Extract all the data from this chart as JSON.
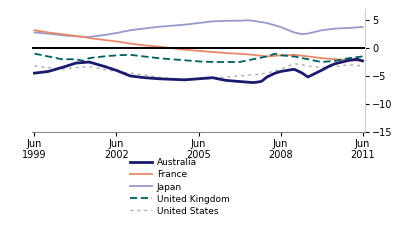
{
  "ylabel": "%",
  "ylim": [
    -15,
    7
  ],
  "yticks": [
    -15,
    -10,
    -5,
    0,
    5
  ],
  "x_start": 1999.4,
  "x_end": 2011.6,
  "xtick_labels": [
    "Jun\n1999",
    "Jun\n2002",
    "Jun\n2005",
    "Jun\n2008",
    "Jun\n2011"
  ],
  "xtick_positions": [
    1999.5,
    2002.5,
    2005.5,
    2008.5,
    2011.5
  ],
  "australia_color": "#1a1a6e",
  "france_color": "#e8896a",
  "japan_color": "#9999cc",
  "uk_color": "#006060",
  "us_color": "#aaaaaa",
  "background_color": "#ffffff",
  "australia_pts": [
    [
      1999.5,
      -4.5
    ],
    [
      2000.0,
      -4.2
    ],
    [
      2000.5,
      -3.5
    ],
    [
      2001.0,
      -2.7
    ],
    [
      2001.5,
      -2.5
    ],
    [
      2002.0,
      -3.2
    ],
    [
      2002.5,
      -4.0
    ],
    [
      2003.0,
      -5.0
    ],
    [
      2003.5,
      -5.3
    ],
    [
      2004.0,
      -5.5
    ],
    [
      2004.5,
      -5.6
    ],
    [
      2005.0,
      -5.7
    ],
    [
      2005.5,
      -5.5
    ],
    [
      2006.0,
      -5.3
    ],
    [
      2006.5,
      -5.8
    ],
    [
      2007.0,
      -6.0
    ],
    [
      2007.5,
      -6.2
    ],
    [
      2007.8,
      -6.0
    ],
    [
      2008.0,
      -5.2
    ],
    [
      2008.3,
      -4.5
    ],
    [
      2008.5,
      -4.2
    ],
    [
      2009.0,
      -3.8
    ],
    [
      2009.3,
      -4.5
    ],
    [
      2009.5,
      -5.2
    ],
    [
      2010.0,
      -4.0
    ],
    [
      2010.3,
      -3.2
    ],
    [
      2010.5,
      -2.8
    ],
    [
      2011.0,
      -2.2
    ],
    [
      2011.3,
      -2.0
    ],
    [
      2011.5,
      -2.3
    ]
  ],
  "france_pts": [
    [
      1999.5,
      3.2
    ],
    [
      2000.0,
      2.8
    ],
    [
      2000.5,
      2.5
    ],
    [
      2001.0,
      2.2
    ],
    [
      2001.5,
      1.8
    ],
    [
      2002.0,
      1.5
    ],
    [
      2002.5,
      1.2
    ],
    [
      2003.0,
      0.8
    ],
    [
      2003.5,
      0.5
    ],
    [
      2004.0,
      0.3
    ],
    [
      2004.5,
      0.0
    ],
    [
      2005.0,
      -0.3
    ],
    [
      2005.5,
      -0.5
    ],
    [
      2006.0,
      -0.7
    ],
    [
      2006.5,
      -0.9
    ],
    [
      2007.0,
      -1.0
    ],
    [
      2007.5,
      -1.2
    ],
    [
      2008.0,
      -1.5
    ],
    [
      2008.5,
      -1.3
    ],
    [
      2009.0,
      -1.2
    ],
    [
      2009.5,
      -1.5
    ],
    [
      2010.0,
      -1.8
    ],
    [
      2010.5,
      -2.0
    ],
    [
      2011.0,
      -2.2
    ],
    [
      2011.5,
      -2.3
    ]
  ],
  "japan_pts": [
    [
      1999.5,
      2.8
    ],
    [
      2000.0,
      2.6
    ],
    [
      2000.5,
      2.3
    ],
    [
      2001.0,
      2.1
    ],
    [
      2001.5,
      2.0
    ],
    [
      2002.0,
      2.3
    ],
    [
      2002.5,
      2.7
    ],
    [
      2003.0,
      3.2
    ],
    [
      2003.5,
      3.5
    ],
    [
      2004.0,
      3.8
    ],
    [
      2004.5,
      4.0
    ],
    [
      2005.0,
      4.2
    ],
    [
      2005.5,
      4.5
    ],
    [
      2006.0,
      4.8
    ],
    [
      2006.5,
      4.9
    ],
    [
      2007.0,
      4.9
    ],
    [
      2007.3,
      5.0
    ],
    [
      2007.5,
      4.9
    ],
    [
      2008.0,
      4.5
    ],
    [
      2008.5,
      3.8
    ],
    [
      2009.0,
      2.8
    ],
    [
      2009.3,
      2.5
    ],
    [
      2009.5,
      2.6
    ],
    [
      2010.0,
      3.2
    ],
    [
      2010.5,
      3.5
    ],
    [
      2011.0,
      3.6
    ],
    [
      2011.5,
      3.8
    ]
  ],
  "uk_pts": [
    [
      1999.5,
      -1.0
    ],
    [
      2000.0,
      -1.5
    ],
    [
      2000.5,
      -2.0
    ],
    [
      2001.0,
      -2.0
    ],
    [
      2001.3,
      -2.3
    ],
    [
      2001.5,
      -1.8
    ],
    [
      2002.0,
      -1.5
    ],
    [
      2002.5,
      -1.3
    ],
    [
      2003.0,
      -1.2
    ],
    [
      2003.5,
      -1.5
    ],
    [
      2004.0,
      -1.8
    ],
    [
      2004.5,
      -2.0
    ],
    [
      2005.0,
      -2.2
    ],
    [
      2005.5,
      -2.4
    ],
    [
      2006.0,
      -2.5
    ],
    [
      2006.5,
      -2.5
    ],
    [
      2007.0,
      -2.5
    ],
    [
      2007.5,
      -2.0
    ],
    [
      2008.0,
      -1.5
    ],
    [
      2008.3,
      -1.0
    ],
    [
      2008.5,
      -1.3
    ],
    [
      2009.0,
      -1.5
    ],
    [
      2009.5,
      -2.0
    ],
    [
      2010.0,
      -2.5
    ],
    [
      2010.5,
      -2.3
    ],
    [
      2011.0,
      -1.8
    ],
    [
      2011.5,
      -1.5
    ]
  ],
  "us_pts": [
    [
      1999.5,
      -3.2
    ],
    [
      2000.0,
      -3.5
    ],
    [
      2000.5,
      -3.8
    ],
    [
      2001.0,
      -3.5
    ],
    [
      2001.5,
      -3.3
    ],
    [
      2002.0,
      -3.8
    ],
    [
      2002.5,
      -4.2
    ],
    [
      2003.0,
      -4.5
    ],
    [
      2003.5,
      -4.8
    ],
    [
      2004.0,
      -5.2
    ],
    [
      2004.5,
      -5.5
    ],
    [
      2005.0,
      -5.7
    ],
    [
      2005.5,
      -5.6
    ],
    [
      2006.0,
      -5.5
    ],
    [
      2006.5,
      -5.2
    ],
    [
      2007.0,
      -5.0
    ],
    [
      2007.5,
      -4.8
    ],
    [
      2008.0,
      -4.5
    ],
    [
      2008.5,
      -3.8
    ],
    [
      2009.0,
      -2.8
    ],
    [
      2009.3,
      -3.0
    ],
    [
      2009.5,
      -3.2
    ],
    [
      2010.0,
      -3.5
    ],
    [
      2010.5,
      -3.3
    ],
    [
      2011.0,
      -3.0
    ],
    [
      2011.5,
      -3.2
    ]
  ]
}
